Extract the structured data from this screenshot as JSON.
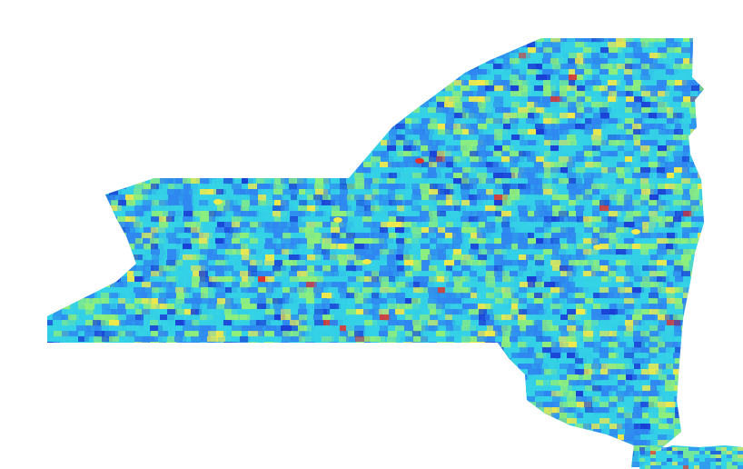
{
  "map": {
    "region": "New York State",
    "colormap": "jet",
    "colors": {
      "background": "#ffffff",
      "base_fill": "#2ec8e8",
      "low": "#1a3fd6",
      "low_mid": "#2f86f0",
      "mid": "#35d2e6",
      "high_mid": "#8fef7a",
      "high": "#f2e94a",
      "peak": "#e2312a"
    },
    "has_legend": false,
    "has_title": false
  }
}
